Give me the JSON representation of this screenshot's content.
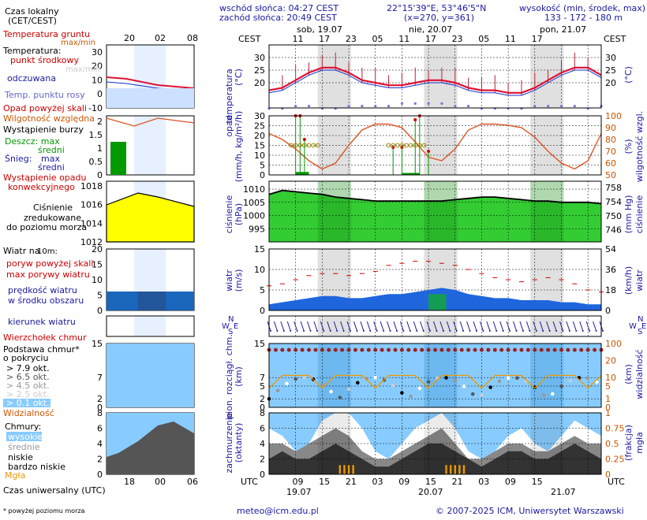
{
  "header": {
    "sunrise": "wschód słońca: 04:27 CEST",
    "sunset": "zachód słońca: 20:49 CEST",
    "coords": "22°15'39\"E, 53°46'5\"N",
    "grid": "(x=270, y=361)",
    "elev_title": "wysokość (min, środek, max)",
    "elev_values": "133 - 172 - 180 m"
  },
  "days": {
    "d1": "sob, 19.07",
    "d2": "nie, 20.07",
    "d3": "pon, 21.07"
  },
  "cest_label": "CEST",
  "utc_label": "UTC",
  "cest_ticks": [
    "11",
    "17",
    "23",
    "05",
    "11",
    "17",
    "23",
    "05",
    "11",
    "17"
  ],
  "utc_ticks": [
    "09",
    "15",
    "21",
    "03",
    "09",
    "15",
    "21",
    "03",
    "09",
    "15"
  ],
  "utc_dates": [
    "19.07",
    "20.07",
    "21.07"
  ],
  "legend": {
    "czas_lokalny": "Czas lokalny",
    "cet_cest": "(CET/CEST)",
    "leg_ticks_top": [
      "20",
      "02",
      "08"
    ],
    "leg_ticks_bottom": [
      "18",
      "00",
      "06"
    ],
    "temp_gruntu": "Temperatura gruntu",
    "max_min": "max/min",
    "temperatura": "Temperatura:",
    "punkt_srodkowy": "punkt środkowy",
    "max_min2": "max/min",
    "odczuwana": "odczuwana",
    "punkt_rosy": "Temp. punktu rosy",
    "opad_powyzej": "Opad powyżej skali",
    "wilgotnosc": "Wilgotność względna",
    "burza": "Wystąpienie burzy",
    "deszcz": "Deszcz: max",
    "deszcz_sredni": "średni",
    "snieg": "Śnieg:",
    "snieg_max": "max",
    "snieg_sredni": "średni",
    "wystapienie_opadu": "Wystąpienie opadu",
    "konwekcyjnego": "konwekcyjnego",
    "cisnienie": "Ciśnienie",
    "zredukowane": "zredukowane",
    "do_poziomu": "do poziomu morza",
    "wiatr_na": "Wiatr na",
    "wiatr_10m": "10m:",
    "poryw_powyzej": "poryw powyżej skali",
    "max_porywy": "max porywy wiatru",
    "predkosc": "prędkość wiatru",
    "w_srodku": "w środku obszaru",
    "kierunek": "kierunek wiatru",
    "wierzcholek": "Wierzchołek chmur",
    "podstawa": "Podstawa chmur*",
    "o_pokryciu": "o pokryciu",
    "okt79": "> 7.9 okt.",
    "okt65": "> 6.5 okt.",
    "okt45": "> 4.5 okt.",
    "okt25": "> 2.5 okt.",
    "okt01": "> 0.1 okt.",
    "widzialnosc": "Widzialność",
    "chmury": "Chmury:",
    "wysokie": "wysokie",
    "srednie": "średnie",
    "niskie": "niskie",
    "bardzo_niskie": "bardzo niskie",
    "mgla": "Mgła",
    "czas_uniwersalny": "Czas uniwersalny (UTC)",
    "footnote": "* powyżej poziomu morza"
  },
  "axis_titles": {
    "temp": "temperatura",
    "temp_unit": "(°C)",
    "opad": "opad",
    "opad_unit": "(mm/h, kg/m²/h)",
    "wilg": "wilgotność wzgl.",
    "wilg_unit": "(%)",
    "cisn": "ciśnienie",
    "cisn_unit": "(hPa)",
    "cisn_r": "ciśnienie",
    "cisn_r_unit": "(mm Hg)",
    "wiatr": "wiatr",
    "wiatr_unit": "(m/s)",
    "wiatr_r": "wiatr",
    "wiatr_r_unit": "(km/h)",
    "pion": "pion. rozciągł. chm.",
    "pion_unit": "(km)",
    "widz": "widzialność",
    "widz_unit": "(km)",
    "zachm": "zachmurzenie",
    "zachm_unit": "(oktanty)",
    "mgla": "mgła",
    "mgla_unit": "(frakcja)"
  },
  "compass": {
    "n": "N",
    "s": "S",
    "w": "W",
    "e": "E"
  },
  "footer": {
    "email": "meteo@icm.edu.pl",
    "copyright": "© 2007-2025 ICM, Uniwersytet Warszawski"
  },
  "colors": {
    "temp": "#dd1133",
    "rain": "#009900",
    "humidity": "#dd5522",
    "pressure_fill": "#33cc33",
    "sky": "#88ccff",
    "night": "#e0e0e0"
  },
  "chart_data": [
    {
      "type": "line",
      "name": "temperatura",
      "x_hours": [
        0,
        3,
        6,
        9,
        12,
        15,
        18,
        21,
        24,
        27,
        30,
        33,
        36,
        39,
        42,
        45,
        48,
        51,
        54,
        57,
        60,
        63,
        66,
        69,
        72,
        75
      ],
      "series": [
        {
          "name": "punkt środkowy",
          "values": [
            17,
            18,
            21,
            24,
            26,
            26,
            24,
            21,
            20,
            19,
            19,
            20,
            21,
            21,
            20,
            18,
            17,
            17,
            16,
            16,
            18,
            21,
            24,
            26,
            26,
            23
          ]
        },
        {
          "name": "odczuwana",
          "values": [
            16,
            17,
            20,
            23,
            25,
            25,
            23,
            20,
            19,
            18,
            18,
            19,
            20,
            20,
            19,
            17,
            16,
            16,
            15,
            15,
            17,
            20,
            23,
            25,
            25,
            22
          ]
        },
        {
          "name": "Temp. punktu rosy",
          "values": [
            11,
            11,
            12,
            12,
            11,
            11,
            12,
            12,
            12,
            12,
            13,
            13,
            13,
            13,
            12,
            12,
            11,
            11,
            11,
            11,
            12,
            12,
            12,
            12,
            11,
            12
          ]
        }
      ],
      "ylim": [
        10,
        35
      ],
      "yticks": [
        20,
        25,
        30
      ]
    },
    {
      "type": "bar",
      "name": "opad",
      "ylim": [
        0,
        30
      ],
      "yticks": [
        0,
        5,
        10,
        15,
        20,
        25,
        30
      ],
      "right_ticks": [
        50,
        60,
        70,
        80,
        90,
        100
      ],
      "humidity": [
        85,
        80,
        72,
        62,
        55,
        60,
        75,
        88,
        93,
        93,
        90,
        78,
        65,
        62,
        72,
        88,
        93,
        93,
        92,
        90,
        82,
        70,
        60,
        55,
        62,
        85
      ]
    },
    {
      "type": "area",
      "name": "ciśnienie",
      "ylim": [
        990,
        1013
      ],
      "yticks": [
        995,
        1000,
        1005,
        1010
      ],
      "right_ticks": [
        746,
        750,
        754,
        758
      ],
      "values": [
        1008,
        1009.5,
        1009,
        1008.5,
        1008,
        1007,
        1006.5,
        1006,
        1005.5,
        1005.5,
        1005.5,
        1005.5,
        1005.5,
        1005.5,
        1006,
        1006.5,
        1007,
        1007,
        1006.5,
        1006,
        1005.5,
        1005.5,
        1005,
        1005,
        1005,
        1004.5
      ]
    },
    {
      "type": "area",
      "name": "wiatr",
      "ylim": [
        0,
        15
      ],
      "yticks": [
        0,
        5,
        10,
        15
      ],
      "right_ticks": [
        0,
        18,
        36,
        54
      ],
      "speed": [
        1.5,
        2,
        2.5,
        3,
        3.5,
        3.5,
        3,
        3,
        3.5,
        4,
        4,
        4.5,
        5,
        5.5,
        5,
        4,
        3.5,
        3,
        3,
        2.5,
        2.5,
        2.5,
        2,
        2,
        1.5,
        1.5
      ],
      "gusts": [
        6,
        6.5,
        7.5,
        8.5,
        9,
        9,
        8.5,
        9,
        9.5,
        11,
        11.5,
        12,
        12,
        11.5,
        11,
        10,
        9,
        8,
        7.5,
        7,
        7.5,
        8,
        7.5,
        6.5,
        5,
        4.5
      ]
    },
    {
      "type": "scatter",
      "name": "pion. rozciągł. chm.",
      "ylim": [
        0,
        15
      ],
      "yticks": [
        0,
        2,
        5,
        7,
        15
      ],
      "right_ticks": [
        0,
        1,
        5,
        10,
        20,
        100
      ]
    },
    {
      "type": "area",
      "name": "zachmurzenie",
      "ylim": [
        0,
        8
      ],
      "yticks": [
        0,
        2,
        4,
        6,
        8
      ],
      "right_ticks": [
        0,
        0.25,
        0.5,
        0.75,
        1
      ]
    }
  ]
}
